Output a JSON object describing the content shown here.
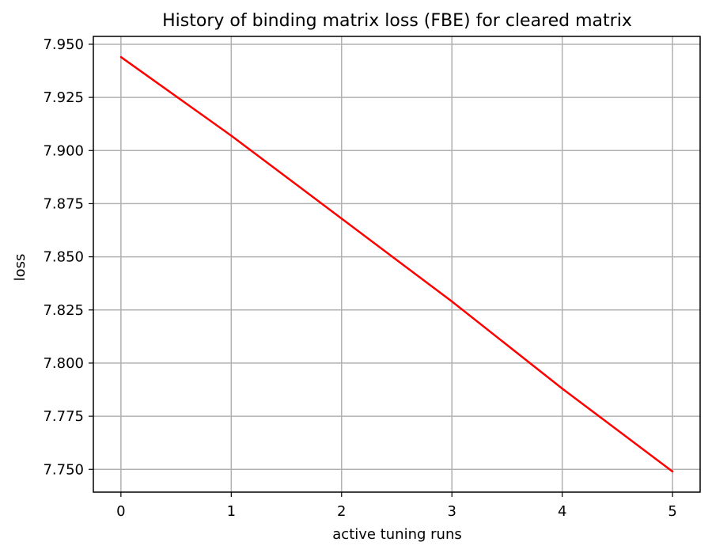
{
  "chart_data": {
    "type": "line",
    "title": "History of binding matrix loss (FBE) for cleared matrix",
    "xlabel": "active tuning runs",
    "ylabel": "loss",
    "x": [
      0,
      1,
      2,
      3,
      4,
      5
    ],
    "series": [
      {
        "values": [
          7.944,
          7.907,
          7.868,
          7.829,
          7.788,
          7.749
        ],
        "color": "#ff0000"
      }
    ],
    "xlim": [
      -0.25,
      5.25
    ],
    "ylim": [
      7.7393,
      7.9537
    ],
    "xticks": [
      0,
      1,
      2,
      3,
      4,
      5
    ],
    "xtick_labels": [
      "0",
      "1",
      "2",
      "3",
      "4",
      "5"
    ],
    "yticks": [
      7.75,
      7.775,
      7.8,
      7.825,
      7.85,
      7.875,
      7.9,
      7.925,
      7.95
    ],
    "ytick_labels": [
      "7.750",
      "7.775",
      "7.800",
      "7.825",
      "7.850",
      "7.875",
      "7.900",
      "7.925",
      "7.950"
    ],
    "grid": true,
    "grid_color": "#b0b0b0",
    "legend": false
  }
}
